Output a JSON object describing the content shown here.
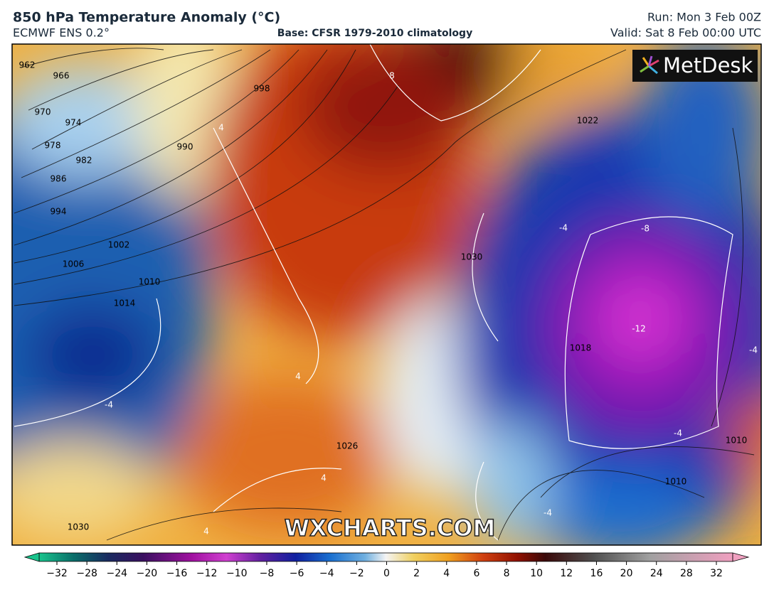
{
  "header": {
    "title": "850 hPa Temperature Anomaly (°C)",
    "model": "ECMWF ENS 0.2°",
    "base": "Base: CFSR 1979-2010 climatology",
    "run": "Run: Mon 3 Feb 00Z",
    "valid": "Valid: Sat 8 Feb 00:00 UTC"
  },
  "logo": "MetDesk",
  "watermark": "WXCHARTS.COM",
  "isobar_labels": [
    "962",
    "966",
    "970",
    "974",
    "978",
    "982",
    "986",
    "994",
    "1002",
    "1006",
    "1010",
    "1014",
    "990",
    "998",
    "1022",
    "1030",
    "1026",
    "1030",
    "1010",
    "1010",
    "1018"
  ],
  "anomaly_labels": [
    "8",
    "4",
    "-4",
    "-8",
    "-12",
    "-4",
    "-4",
    "-4",
    "-4",
    "4",
    "4",
    "4"
  ],
  "colorbar": {
    "ticks": [
      {
        "value": -32,
        "label": "−32"
      },
      {
        "value": -28,
        "label": "−28"
      },
      {
        "value": -24,
        "label": "−24"
      },
      {
        "value": -20,
        "label": "−20"
      },
      {
        "value": -16,
        "label": "−16"
      },
      {
        "value": -12,
        "label": "−12"
      },
      {
        "value": -10,
        "label": "−10"
      },
      {
        "value": -8,
        "label": "−8"
      },
      {
        "value": -6,
        "label": "−6"
      },
      {
        "value": -4,
        "label": "−4"
      },
      {
        "value": -2,
        "label": "−2"
      },
      0,
      2,
      4,
      6,
      8,
      10,
      12,
      16,
      20,
      24,
      28,
      32
    ]
  }
}
